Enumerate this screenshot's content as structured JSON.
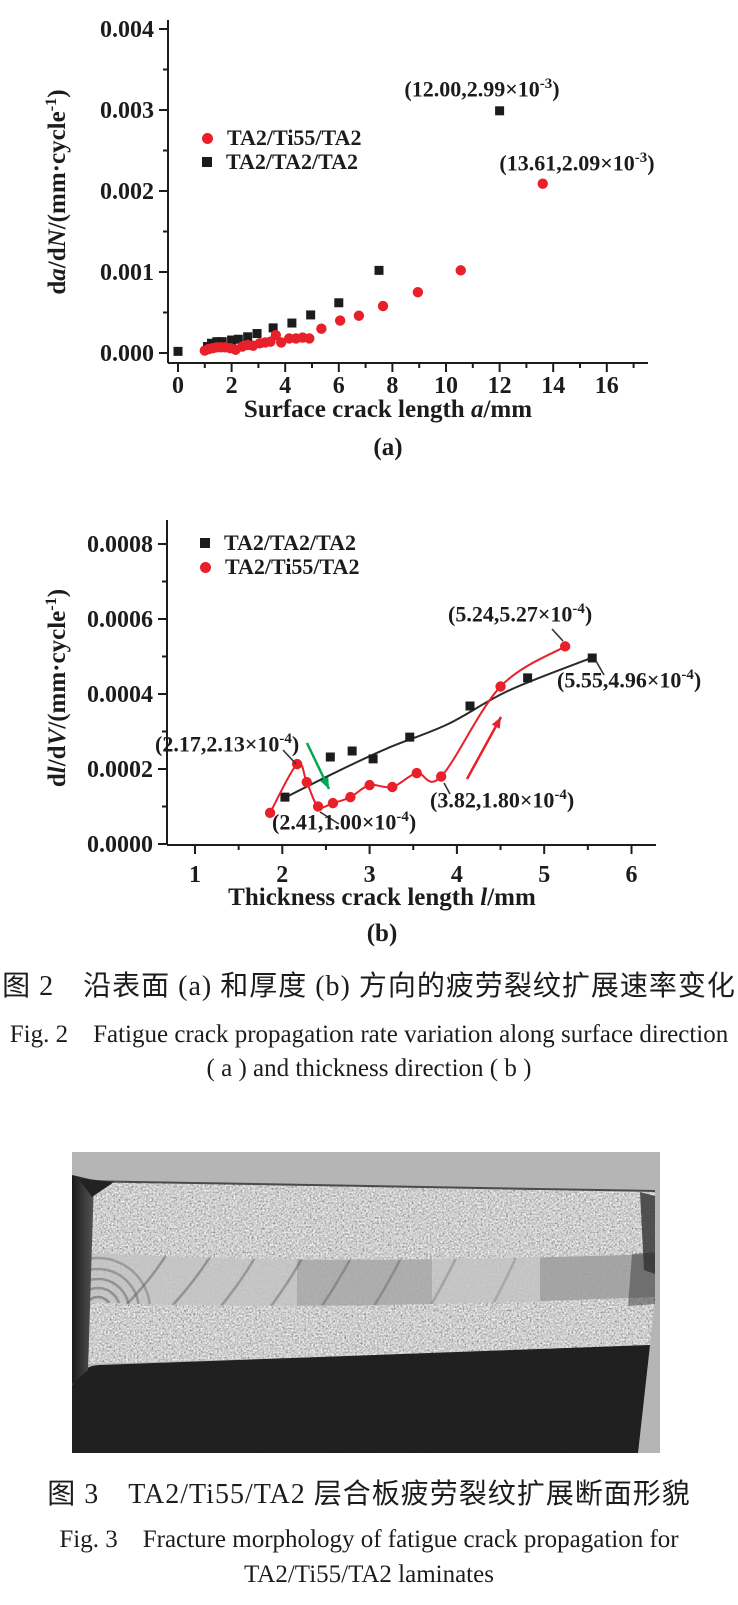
{
  "colors": {
    "red": "#e8202a",
    "black": "#1c1c1c",
    "green": "#00a84f",
    "photo_bg": "#b5b5b5"
  },
  "chart_data": [
    {
      "id": "a",
      "type": "scatter",
      "panel_label": "(a)",
      "xlabel_parts": [
        {
          "t": "Surface crack length "
        },
        {
          "t": "a",
          "i": 1
        },
        {
          "t": "/mm"
        }
      ],
      "ylabel_parts": [
        {
          "t": "d"
        },
        {
          "t": "a",
          "i": 1
        },
        {
          "t": "/d"
        },
        {
          "t": "N",
          "i": 1
        },
        {
          "t": "/(mm·cycle"
        },
        {
          "t": "-1",
          "sup": 1
        },
        {
          "t": ")"
        }
      ],
      "xlim": [
        0,
        17.5
      ],
      "ylim": [
        0,
        0.0042
      ],
      "xticks": [
        0,
        2,
        4,
        6,
        8,
        10,
        12,
        14,
        16
      ],
      "yticks": [
        {
          "v": 0.0,
          "label": "0.000"
        },
        {
          "v": 0.001,
          "label": "0.001"
        },
        {
          "v": 0.002,
          "label": "0.002"
        },
        {
          "v": 0.003,
          "label": "0.003"
        },
        {
          "v": 0.004,
          "label": "0.004"
        }
      ],
      "legend": [
        {
          "label": "TA2/Ti55/TA2",
          "marker": "circle",
          "color": "red"
        },
        {
          "label": "TA2/TA2/TA2",
          "marker": "square",
          "color": "black"
        }
      ],
      "series": [
        {
          "name": "TA2/TA2/TA2",
          "marker": "square",
          "color": "black",
          "points": [
            [
              0,
              2e-05
            ],
            [
              1.1,
              8e-05
            ],
            [
              1.25,
              0.00012
            ],
            [
              1.45,
              0.00014
            ],
            [
              1.65,
              0.00014
            ],
            [
              2.0,
              0.00016
            ],
            [
              2.25,
              0.00017
            ],
            [
              2.6,
              0.0002
            ],
            [
              2.95,
              0.00024
            ],
            [
              3.55,
              0.00031
            ],
            [
              4.25,
              0.00037
            ],
            [
              4.95,
              0.00047
            ],
            [
              6.0,
              0.00062
            ],
            [
              7.5,
              0.00102
            ],
            [
              12.0,
              0.00299
            ]
          ]
        },
        {
          "name": "TA2/Ti55/TA2",
          "marker": "circle",
          "color": "red",
          "points": [
            [
              1.0,
              3e-05
            ],
            [
              1.15,
              5e-05
            ],
            [
              1.3,
              6e-05
            ],
            [
              1.45,
              7e-05
            ],
            [
              1.6,
              7e-05
            ],
            [
              1.75,
              7e-05
            ],
            [
              1.95,
              6e-05
            ],
            [
              2.15,
              4e-05
            ],
            [
              2.4,
              8e-05
            ],
            [
              2.6,
              0.0001
            ],
            [
              2.8,
              9e-05
            ],
            [
              3.05,
              0.00012
            ],
            [
              3.25,
              0.00013
            ],
            [
              3.45,
              0.00014
            ],
            [
              3.65,
              0.00022
            ],
            [
              3.85,
              0.00013
            ],
            [
              4.15,
              0.00018
            ],
            [
              4.4,
              0.00018
            ],
            [
              4.65,
              0.00019
            ],
            [
              4.9,
              0.00018
            ],
            [
              5.35,
              0.0003
            ],
            [
              6.05,
              0.0004
            ],
            [
              6.75,
              0.00046
            ],
            [
              7.65,
              0.00058
            ],
            [
              8.95,
              0.00075
            ],
            [
              10.55,
              0.00102
            ],
            [
              13.61,
              0.00209
            ]
          ]
        }
      ],
      "annotations": [
        {
          "base": "(12.00,2.99×10",
          "sup": "-3",
          "close": ")",
          "x": 12.0,
          "y": 0.00299
        },
        {
          "base": "(13.61,2.09×10",
          "sup": "-3",
          "close": ")",
          "x": 13.61,
          "y": 0.00209
        }
      ]
    },
    {
      "id": "b",
      "type": "scatter",
      "panel_label": "(b)",
      "xlabel_parts": [
        {
          "t": "Thickness crack length "
        },
        {
          "t": "l",
          "i": 1
        },
        {
          "t": "/mm"
        }
      ],
      "ylabel_parts": [
        {
          "t": "d"
        },
        {
          "t": "l",
          "i": 1
        },
        {
          "t": "/d"
        },
        {
          "t": "V",
          "i": 1
        },
        {
          "t": "/(mm·cycle"
        },
        {
          "t": "-1",
          "sup": 1
        },
        {
          "t": ")"
        }
      ],
      "xlim": [
        0.7,
        6.3
      ],
      "ylim": [
        0,
        0.00087
      ],
      "xticks": [
        1,
        2,
        3,
        4,
        5,
        6
      ],
      "yticks": [
        {
          "v": 0.0,
          "label": "0.0000"
        },
        {
          "v": 0.0002,
          "label": "0.0002"
        },
        {
          "v": 0.0004,
          "label": "0.0004"
        },
        {
          "v": 0.0006,
          "label": "0.0006"
        },
        {
          "v": 0.0008,
          "label": "0.0008"
        }
      ],
      "legend": [
        {
          "label": "TA2/TA2/TA2",
          "marker": "square",
          "color": "black"
        },
        {
          "label": "TA2/Ti55/TA2",
          "marker": "circle",
          "color": "red"
        }
      ],
      "series": [
        {
          "name": "TA2/TA2/TA2",
          "marker": "square",
          "color": "black",
          "fit_curve": true,
          "points": [
            [
              2.03,
              0.000125
            ],
            [
              2.55,
              0.000232
            ],
            [
              2.8,
              0.000248
            ],
            [
              3.04,
              0.000227
            ],
            [
              3.46,
              0.000285
            ],
            [
              4.15,
              0.000368
            ],
            [
              4.81,
              0.000443
            ],
            [
              5.55,
              0.000496
            ]
          ]
        },
        {
          "name": "TA2/Ti55/TA2",
          "marker": "circle",
          "color": "red",
          "line": true,
          "points": [
            [
              1.86,
              8.3e-05
            ],
            [
              2.17,
              0.000213
            ],
            [
              2.28,
              0.000165
            ],
            [
              2.41,
              0.0001
            ],
            [
              2.58,
              0.000109
            ],
            [
              2.78,
              0.000125
            ],
            [
              3.0,
              0.000157
            ],
            [
              3.26,
              0.000152
            ],
            [
              3.54,
              0.000189
            ],
            [
              3.82,
              0.00018
            ],
            [
              4.5,
              0.00042
            ],
            [
              5.24,
              0.000527
            ]
          ]
        }
      ],
      "annotations": [
        {
          "base": "(2.17,2.13×10",
          "sup": "-4",
          "close": ")",
          "x": 2.17,
          "y": 0.000213
        },
        {
          "base": "(2.41,1.00×10",
          "sup": "-4",
          "close": ")",
          "x": 2.41,
          "y": 0.0001
        },
        {
          "base": "(3.82,1.80×10",
          "sup": "-4",
          "close": ")",
          "x": 3.82,
          "y": 0.00018
        },
        {
          "base": "(5.24,5.27×10",
          "sup": "-4",
          "close": ")",
          "x": 5.24,
          "y": 0.000527
        },
        {
          "base": "(5.55,4.96×10",
          "sup": "-4",
          "close": ")",
          "x": 5.55,
          "y": 0.000496
        }
      ],
      "arrows": [
        {
          "color": "green",
          "meaning": "pointer to red curve"
        },
        {
          "color": "red",
          "meaning": "steep growth direction"
        }
      ]
    }
  ],
  "fig2_caption": {
    "zh": "图 2　沿表面 (a) 和厚度 (b) 方向的疲劳裂纹扩展速率变化",
    "en1": "Fig. 2　Fatigue crack propagation rate variation along surface direction",
    "en2": "( a ) and thickness direction ( b )"
  },
  "fig3_caption": {
    "zh": "图 3　TA2/Ti55/TA2 层合板疲劳裂纹扩展断面形貌",
    "en1": "Fig. 3　Fracture morphology of fatigue crack propagation for",
    "en2": "TA2/Ti55/TA2 laminates"
  }
}
